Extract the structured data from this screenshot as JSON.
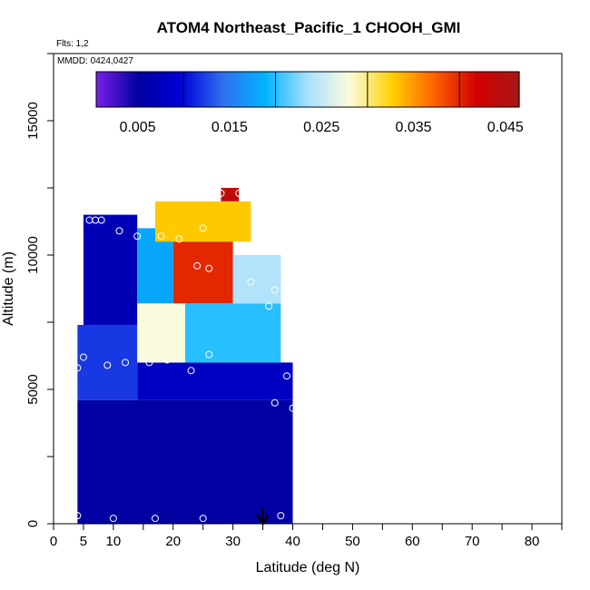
{
  "chart_data": {
    "type": "heatmap",
    "title": "ATOM4 Northeast_Pacific_1 CHOOH_GMI",
    "flights_label": "Flts: 1,2",
    "dates_label": "MMDD: 0424,0427",
    "xlabel": "Latitude (deg N)",
    "ylabel": "Altitude (m)",
    "xlim": [
      0,
      85
    ],
    "ylim": [
      0,
      17500
    ],
    "x_ticks": [
      0,
      5,
      10,
      20,
      30,
      40,
      50,
      60,
      70,
      80
    ],
    "y_ticks": [
      0,
      5000,
      10000,
      15000
    ],
    "colorbar": {
      "range": [
        0.0005,
        0.0465
      ],
      "tick_values": [
        0.005,
        0.015,
        0.025,
        0.035,
        0.045
      ],
      "tick_labels": [
        "0.005",
        "0.015",
        "0.025",
        "0.035",
        "0.045"
      ],
      "colors": [
        "#7a1fe8",
        "#0000a0",
        "#0000d8",
        "#3070f0",
        "#00b4ff",
        "#a8e0ff",
        "#fcfcdc",
        "#ffd000",
        "#ff6000",
        "#d00000",
        "#a81818"
      ]
    },
    "cells": [
      {
        "x0": 4,
        "x1": 40,
        "y0": 0,
        "y1": 4600,
        "v": 0.005
      },
      {
        "x0": 4,
        "x1": 14,
        "y0": 4600,
        "y1": 7400,
        "v": 0.012
      },
      {
        "x0": 14,
        "x1": 40,
        "y0": 4600,
        "y1": 6000,
        "v": 0.008
      },
      {
        "x0": 5,
        "x1": 14,
        "y0": 7400,
        "y1": 11500,
        "v": 0.007
      },
      {
        "x0": 14,
        "x1": 22,
        "y0": 6000,
        "y1": 8200,
        "v": 0.028
      },
      {
        "x0": 22,
        "x1": 38,
        "y0": 6000,
        "y1": 8200,
        "v": 0.02
      },
      {
        "x0": 14,
        "x1": 20,
        "y0": 8200,
        "y1": 11000,
        "v": 0.018
      },
      {
        "x0": 20,
        "x1": 30,
        "y0": 8200,
        "y1": 10500,
        "v": 0.04
      },
      {
        "x0": 30,
        "x1": 38,
        "y0": 8200,
        "y1": 10000,
        "v": 0.024
      },
      {
        "x0": 17,
        "x1": 33,
        "y0": 10500,
        "y1": 12000,
        "v": 0.033
      },
      {
        "x0": 28,
        "x1": 31,
        "y0": 12000,
        "y1": 12500,
        "v": 0.044
      }
    ],
    "points": [
      {
        "x": 4,
        "y": 300
      },
      {
        "x": 10,
        "y": 200
      },
      {
        "x": 17,
        "y": 200
      },
      {
        "x": 25,
        "y": 200
      },
      {
        "x": 38,
        "y": 300
      },
      {
        "x": 4,
        "y": 5800
      },
      {
        "x": 5,
        "y": 6200
      },
      {
        "x": 9,
        "y": 5900
      },
      {
        "x": 12,
        "y": 6000
      },
      {
        "x": 16,
        "y": 6000
      },
      {
        "x": 19,
        "y": 6100
      },
      {
        "x": 23,
        "y": 5700
      },
      {
        "x": 26,
        "y": 6300
      },
      {
        "x": 37,
        "y": 4500
      },
      {
        "x": 39,
        "y": 5500
      },
      {
        "x": 40,
        "y": 4300
      },
      {
        "x": 36,
        "y": 8100
      },
      {
        "x": 37,
        "y": 8700
      },
      {
        "x": 39,
        "y": 8500
      },
      {
        "x": 24,
        "y": 9600
      },
      {
        "x": 26,
        "y": 9500
      },
      {
        "x": 33,
        "y": 9000
      },
      {
        "x": 6,
        "y": 11300
      },
      {
        "x": 7,
        "y": 11300
      },
      {
        "x": 8,
        "y": 11300
      },
      {
        "x": 11,
        "y": 10900
      },
      {
        "x": 14,
        "y": 10700
      },
      {
        "x": 15,
        "y": 11300
      },
      {
        "x": 18,
        "y": 10700
      },
      {
        "x": 21,
        "y": 10600
      },
      {
        "x": 25,
        "y": 11000
      },
      {
        "x": 28,
        "y": 12300
      },
      {
        "x": 31,
        "y": 12300
      }
    ],
    "arrow": {
      "x": 35,
      "y_top": 600,
      "y_bottom": 0
    }
  }
}
